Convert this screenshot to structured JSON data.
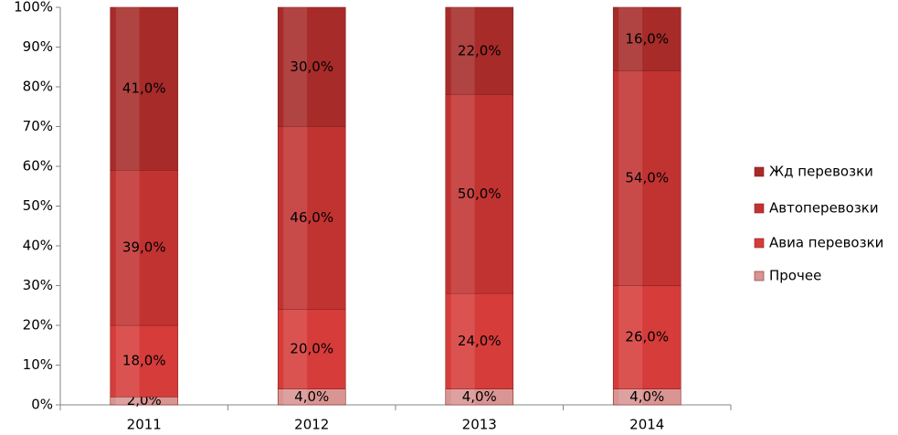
{
  "chart_data": {
    "type": "stacked_bar_100",
    "categories": [
      "2011",
      "2012",
      "2013",
      "2014"
    ],
    "series": [
      {
        "name": "Прочее",
        "color": "#d99593",
        "values": [
          2,
          4,
          4,
          4
        ],
        "value_labels": [
          "2,0%",
          "4,0%",
          "4,0%",
          "4,0%"
        ]
      },
      {
        "name": "Авиа перевозки",
        "color": "#d63c3a",
        "values": [
          18,
          20,
          24,
          26
        ],
        "value_labels": [
          "18,0%",
          "20,0%",
          "24,0%",
          "26,0%"
        ]
      },
      {
        "name": "Автоперевозки",
        "color": "#c13331",
        "values": [
          39,
          46,
          50,
          54
        ],
        "value_labels": [
          "39,0%",
          "46,0%",
          "50,0%",
          "54,0%"
        ]
      },
      {
        "name": "Жд перевозки",
        "color": "#a62b29",
        "values": [
          41,
          30,
          22,
          16
        ],
        "value_labels": [
          "41,0%",
          "30,0%",
          "22,0%",
          "16,0%"
        ]
      }
    ],
    "ylim": [
      0,
      100
    ],
    "yticks": [
      {
        "value": 0,
        "label": "0%"
      },
      {
        "value": 10,
        "label": "10%"
      },
      {
        "value": 20,
        "label": "20%"
      },
      {
        "value": 30,
        "label": "30%"
      },
      {
        "value": 40,
        "label": "40%"
      },
      {
        "value": 50,
        "label": "50%"
      },
      {
        "value": 60,
        "label": "60%"
      },
      {
        "value": 70,
        "label": "70%"
      },
      {
        "value": 80,
        "label": "80%"
      },
      {
        "value": 90,
        "label": "90%"
      },
      {
        "value": 100,
        "label": "100%"
      }
    ],
    "grid": false,
    "legend": "right"
  }
}
